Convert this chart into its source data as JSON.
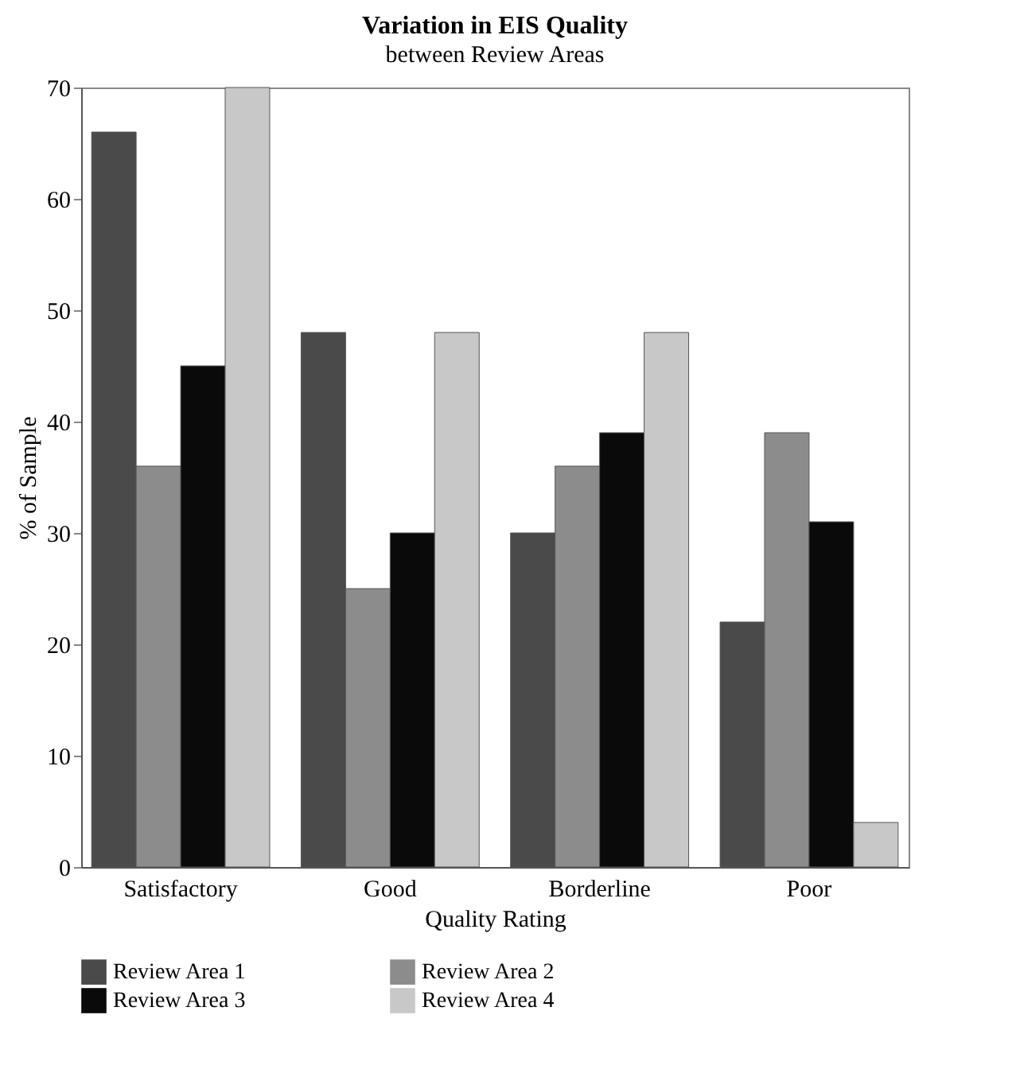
{
  "chart_data": {
    "type": "bar",
    "title": "Variation in EIS Quality",
    "subtitle": "between Review Areas",
    "xlabel": "Quality Rating",
    "ylabel": "% of Sample",
    "categories": [
      "Satisfactory",
      "Good",
      "Borderline",
      "Poor"
    ],
    "series": [
      {
        "name": "Review Area 1",
        "color": "#4a4a4a",
        "values": [
          66,
          48,
          30,
          22
        ]
      },
      {
        "name": "Review Area 2",
        "color": "#8c8c8c",
        "values": [
          36,
          25,
          36,
          39
        ]
      },
      {
        "name": "Review Area 3",
        "color": "#0a0a0a",
        "values": [
          45,
          30,
          39,
          31
        ]
      },
      {
        "name": "Review Area 4",
        "color": "#c8c8c8",
        "values": [
          70,
          48,
          48,
          4
        ]
      }
    ],
    "ylim": [
      0,
      70
    ],
    "yticks": [
      0,
      10,
      20,
      30,
      40,
      50,
      60,
      70
    ],
    "grid": false,
    "legend": "bottom"
  }
}
